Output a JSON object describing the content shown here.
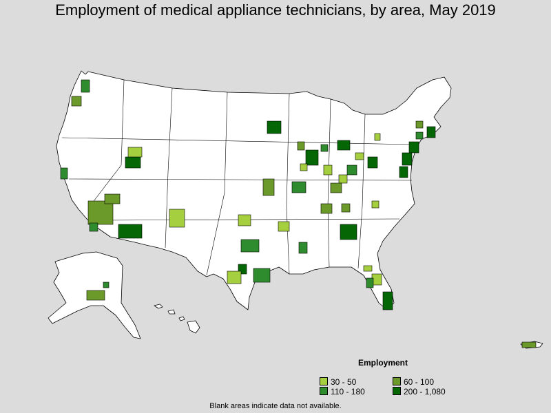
{
  "title": "Employment of medical appliance technicians, by area, May 2019",
  "legend": {
    "title": "Employment",
    "items": [
      {
        "label": "30 - 50",
        "color": "#a6cf3f"
      },
      {
        "label": "60 - 100",
        "color": "#6b9a2a"
      },
      {
        "label": "110 - 180",
        "color": "#2e8b2e"
      },
      {
        "label": "200 - 1,080",
        "color": "#046604"
      }
    ]
  },
  "note": "Blank areas indicate data not available.",
  "colors": {
    "background": "#dcdcdc",
    "land": "#ffffff",
    "border": "#000000"
  }
}
